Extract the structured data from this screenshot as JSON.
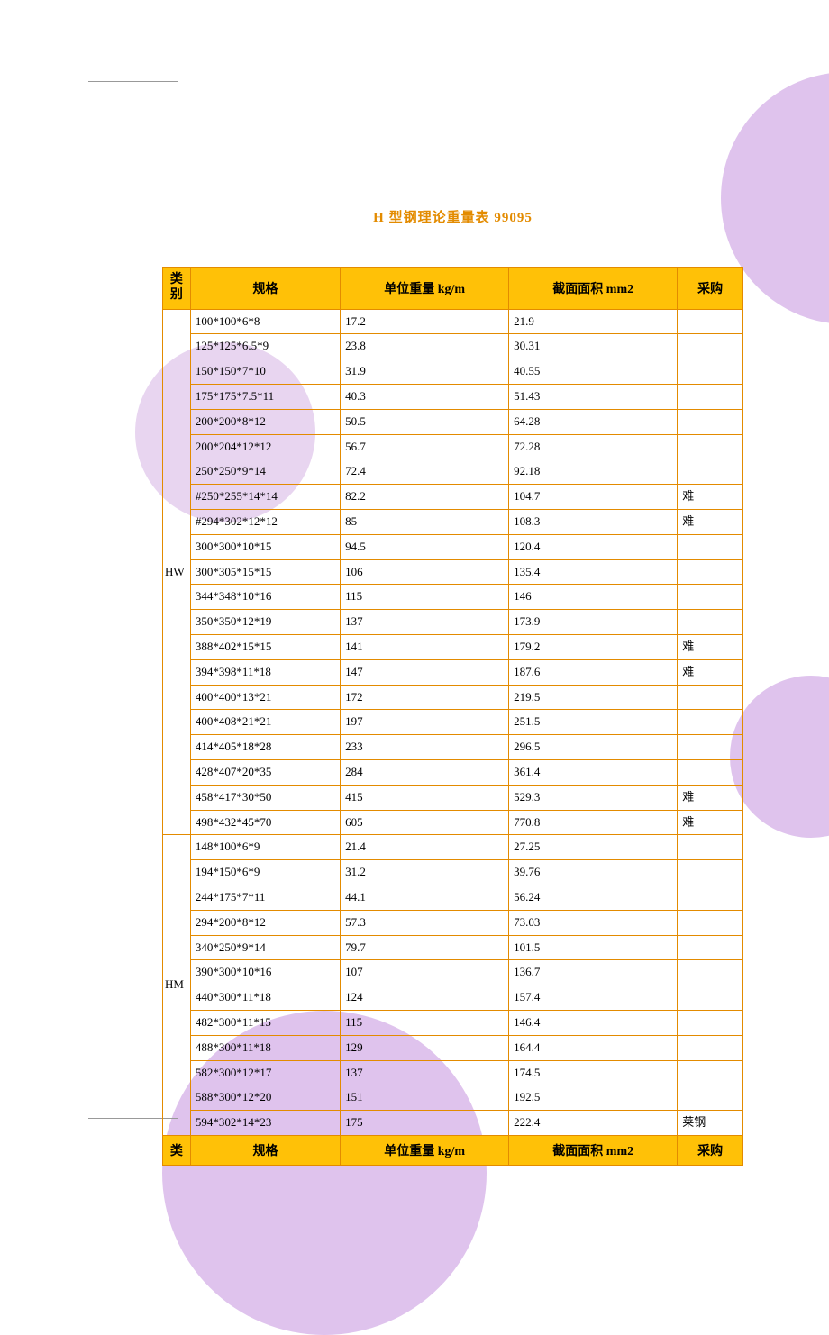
{
  "title": "H 型钢理论重量表 99095",
  "table": {
    "type": "table",
    "header_bg": "#ffc107",
    "border_color": "#e38b00",
    "title_color": "#e38b00",
    "font_family": "SimSun",
    "columns": {
      "category": "类别",
      "category_short": "类",
      "spec": "规格",
      "unit_weight": "单位重量  kg/m",
      "cross_area": "截面面积  mm2",
      "purchase": "采购"
    },
    "groups": [
      {
        "category": "HW",
        "rows": [
          {
            "spec": "100*100*6*8",
            "weight": "17.2",
            "area": "21.9",
            "purchase": ""
          },
          {
            "spec": "125*125*6.5*9",
            "weight": "23.8",
            "area": "30.31",
            "purchase": ""
          },
          {
            "spec": "150*150*7*10",
            "weight": "31.9",
            "area": "40.55",
            "purchase": ""
          },
          {
            "spec": "175*175*7.5*11",
            "weight": "40.3",
            "area": "51.43",
            "purchase": ""
          },
          {
            "spec": "200*200*8*12",
            "weight": "50.5",
            "area": "64.28",
            "purchase": ""
          },
          {
            "spec": "200*204*12*12",
            "weight": "56.7",
            "area": "72.28",
            "purchase": ""
          },
          {
            "spec": "250*250*9*14",
            "weight": "72.4",
            "area": "92.18",
            "purchase": ""
          },
          {
            "spec": "#250*255*14*14",
            "weight": "82.2",
            "area": "104.7",
            "purchase": "难"
          },
          {
            "spec": "#294*302*12*12",
            "weight": "85",
            "area": "108.3",
            "purchase": "难"
          },
          {
            "spec": "300*300*10*15",
            "weight": "94.5",
            "area": "120.4",
            "purchase": ""
          },
          {
            "spec": "300*305*15*15",
            "weight": "106",
            "area": "135.4",
            "purchase": ""
          },
          {
            "spec": "344*348*10*16",
            "weight": "115",
            "area": "146",
            "purchase": ""
          },
          {
            "spec": "350*350*12*19",
            "weight": "137",
            "area": "173.9",
            "purchase": ""
          },
          {
            "spec": "388*402*15*15",
            "weight": "141",
            "area": "179.2",
            "purchase": "难"
          },
          {
            "spec": "394*398*11*18",
            "weight": "147",
            "area": "187.6",
            "purchase": "难"
          },
          {
            "spec": "400*400*13*21",
            "weight": "172",
            "area": "219.5",
            "purchase": ""
          },
          {
            "spec": "400*408*21*21",
            "weight": "197",
            "area": "251.5",
            "purchase": ""
          },
          {
            "spec": "414*405*18*28",
            "weight": "233",
            "area": "296.5",
            "purchase": ""
          },
          {
            "spec": "428*407*20*35",
            "weight": "284",
            "area": "361.4",
            "purchase": ""
          },
          {
            "spec": "458*417*30*50",
            "weight": "415",
            "area": "529.3",
            "purchase": "难"
          },
          {
            "spec": "498*432*45*70",
            "weight": "605",
            "area": "770.8",
            "purchase": "难"
          }
        ]
      },
      {
        "category": "HM",
        "rows": [
          {
            "spec": "148*100*6*9",
            "weight": "21.4",
            "area": "27.25",
            "purchase": ""
          },
          {
            "spec": "194*150*6*9",
            "weight": "31.2",
            "area": "39.76",
            "purchase": ""
          },
          {
            "spec": "244*175*7*11",
            "weight": "44.1",
            "area": "56.24",
            "purchase": ""
          },
          {
            "spec": "294*200*8*12",
            "weight": "57.3",
            "area": "73.03",
            "purchase": ""
          },
          {
            "spec": "340*250*9*14",
            "weight": "79.7",
            "area": "101.5",
            "purchase": ""
          },
          {
            "spec": "390*300*10*16",
            "weight": "107",
            "area": "136.7",
            "purchase": ""
          },
          {
            "spec": "440*300*11*18",
            "weight": "124",
            "area": "157.4",
            "purchase": ""
          },
          {
            "spec": "482*300*11*15",
            "weight": "115",
            "area": "146.4",
            "purchase": ""
          },
          {
            "spec": "488*300*11*18",
            "weight": "129",
            "area": "164.4",
            "purchase": ""
          },
          {
            "spec": "582*300*12*17",
            "weight": "137",
            "area": "174.5",
            "purchase": ""
          },
          {
            "spec": "588*300*12*20",
            "weight": "151",
            "area": "192.5",
            "purchase": ""
          },
          {
            "spec": "594*302*14*23",
            "weight": "175",
            "area": "222.4",
            "purchase": "莱钢"
          }
        ]
      }
    ]
  },
  "decoration": {
    "circle_color_light": "#e8d5f0",
    "circle_color_dark": "#dfc3ed",
    "background_color": "#ffffff"
  }
}
